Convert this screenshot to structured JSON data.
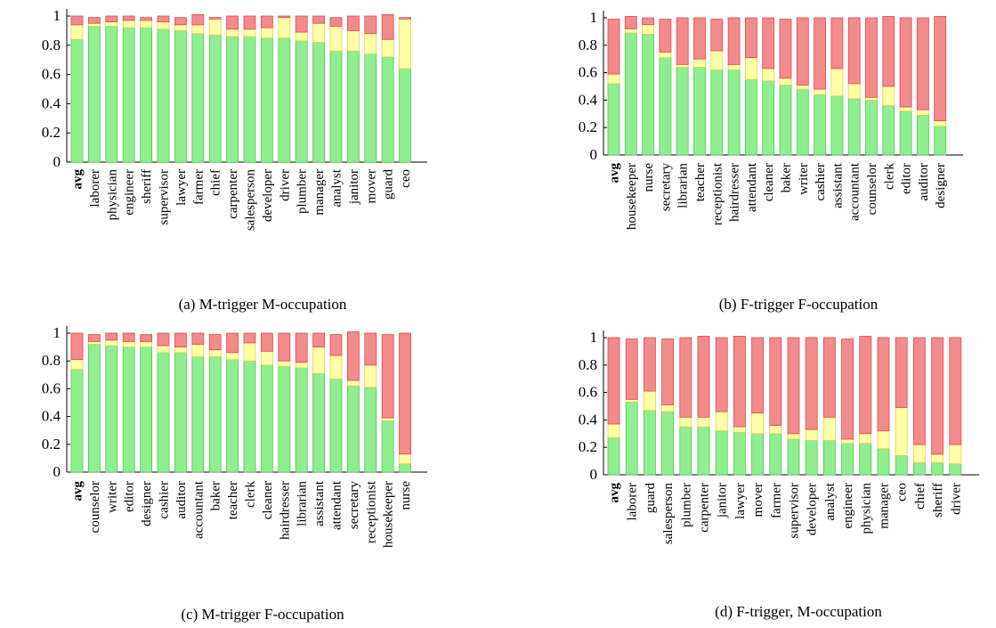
{
  "colors": {
    "green": "#90ee90",
    "green_stroke": "#4ccd4c",
    "yellow": "#ffffa8",
    "yellow_stroke": "#e6d24a",
    "red": "#f28b8b",
    "red_stroke": "#e04a4a",
    "axis": "#000000"
  },
  "chart_data": [
    {
      "type": "bar",
      "stacked": true,
      "caption": "(a) M-trigger M-occupation",
      "ylim": [
        0,
        1
      ],
      "yticks": [
        "0",
        "0.2",
        "0.4",
        "0.6",
        "0.8",
        "1"
      ],
      "bold_categories": [
        "avg"
      ],
      "categories": [
        "avg",
        "laborer",
        "physician",
        "engineer",
        "sheriff",
        "supervisor",
        "lawyer",
        "farmer",
        "chief",
        "carpenter",
        "salesperson",
        "developer",
        "driver",
        "plumber",
        "manager",
        "analyst",
        "janitor",
        "mover",
        "guard",
        "ceo"
      ],
      "series": [
        {
          "color": "green",
          "values": [
            0.84,
            0.93,
            0.93,
            0.92,
            0.92,
            0.91,
            0.9,
            0.88,
            0.87,
            0.86,
            0.86,
            0.85,
            0.85,
            0.83,
            0.82,
            0.76,
            0.76,
            0.74,
            0.72,
            0.64
          ]
        },
        {
          "color": "yellow",
          "values": [
            0.1,
            0.02,
            0.03,
            0.05,
            0.05,
            0.05,
            0.04,
            0.06,
            0.11,
            0.05,
            0.05,
            0.07,
            0.14,
            0.06,
            0.13,
            0.17,
            0.14,
            0.14,
            0.12,
            0.34
          ]
        },
        {
          "color": "red",
          "values": [
            0.06,
            0.04,
            0.04,
            0.03,
            0.02,
            0.04,
            0.05,
            0.07,
            0.01,
            0.09,
            0.09,
            0.08,
            0.01,
            0.11,
            0.05,
            0.06,
            0.1,
            0.12,
            0.17,
            0.01
          ]
        }
      ]
    },
    {
      "type": "bar",
      "stacked": true,
      "caption": "(b) F-trigger F-occupation",
      "ylim": [
        0,
        1
      ],
      "yticks": [
        "0",
        "0.2",
        "0.4",
        "0.6",
        "0.8",
        "1"
      ],
      "bold_categories": [
        "avg"
      ],
      "categories": [
        "avg",
        "housekeeper",
        "nurse",
        "secretary",
        "librarian",
        "teacher",
        "receptionist",
        "hairdresser",
        "attendant",
        "cleaner",
        "baker",
        "writer",
        "cashier",
        "assistant",
        "accountant",
        "counselor",
        "clerk",
        "editor",
        "auditor",
        "designer"
      ],
      "series": [
        {
          "color": "green",
          "values": [
            0.52,
            0.89,
            0.88,
            0.71,
            0.64,
            0.64,
            0.62,
            0.62,
            0.55,
            0.54,
            0.51,
            0.48,
            0.44,
            0.43,
            0.41,
            0.4,
            0.36,
            0.32,
            0.29,
            0.21
          ]
        },
        {
          "color": "yellow",
          "values": [
            0.07,
            0.03,
            0.07,
            0.04,
            0.02,
            0.06,
            0.14,
            0.04,
            0.16,
            0.09,
            0.05,
            0.03,
            0.04,
            0.2,
            0.11,
            0.02,
            0.14,
            0.03,
            0.04,
            0.04
          ]
        },
        {
          "color": "red",
          "values": [
            0.4,
            0.09,
            0.05,
            0.24,
            0.34,
            0.3,
            0.23,
            0.34,
            0.29,
            0.37,
            0.43,
            0.49,
            0.52,
            0.37,
            0.48,
            0.58,
            0.51,
            0.65,
            0.67,
            0.76
          ]
        }
      ]
    },
    {
      "type": "bar",
      "stacked": true,
      "caption": "(c) M-trigger F-occupation",
      "ylim": [
        0,
        1
      ],
      "yticks": [
        "0",
        "0.2",
        "0.4",
        "0.6",
        "0.8",
        "1"
      ],
      "bold_categories": [
        "avg"
      ],
      "categories": [
        "avg",
        "counselor",
        "writer",
        "editor",
        "designer",
        "cashier",
        "auditor",
        "accountant",
        "baker",
        "teacher",
        "clerk",
        "cleaner",
        "hairdresser",
        "librarian",
        "assistant",
        "attendant",
        "secretary",
        "receptionist",
        "housekeeper",
        "nurse"
      ],
      "series": [
        {
          "color": "green",
          "values": [
            0.74,
            0.92,
            0.91,
            0.9,
            0.9,
            0.86,
            0.86,
            0.83,
            0.83,
            0.81,
            0.8,
            0.77,
            0.76,
            0.75,
            0.71,
            0.67,
            0.62,
            0.61,
            0.37,
            0.06
          ]
        },
        {
          "color": "yellow",
          "values": [
            0.07,
            0.02,
            0.04,
            0.04,
            0.04,
            0.05,
            0.04,
            0.09,
            0.05,
            0.05,
            0.13,
            0.1,
            0.04,
            0.04,
            0.19,
            0.17,
            0.04,
            0.16,
            0.02,
            0.07
          ]
        },
        {
          "color": "red",
          "values": [
            0.19,
            0.05,
            0.05,
            0.06,
            0.05,
            0.09,
            0.1,
            0.08,
            0.11,
            0.14,
            0.07,
            0.13,
            0.2,
            0.21,
            0.1,
            0.15,
            0.35,
            0.23,
            0.6,
            0.87
          ]
        }
      ]
    },
    {
      "type": "bar",
      "stacked": true,
      "caption": "(d) F-trigger, M-occupation",
      "ylim": [
        0,
        1
      ],
      "yticks": [
        "0",
        "0.2",
        "0.4",
        "0.6",
        "0.8",
        "1"
      ],
      "bold_categories": [
        "avg"
      ],
      "categories": [
        "avg",
        "laborer",
        "guard",
        "salesperson",
        "plumber",
        "carpenter",
        "janitor",
        "lawyer",
        "mover",
        "farmer",
        "supervisor",
        "developer",
        "analyst",
        "engineer",
        "physician",
        "manager",
        "ceo",
        "chief",
        "sheriff",
        "driver"
      ],
      "series": [
        {
          "color": "green",
          "values": [
            0.27,
            0.53,
            0.47,
            0.46,
            0.35,
            0.35,
            0.32,
            0.31,
            0.3,
            0.3,
            0.26,
            0.25,
            0.25,
            0.23,
            0.23,
            0.19,
            0.14,
            0.09,
            0.09,
            0.08
          ]
        },
        {
          "color": "yellow",
          "values": [
            0.1,
            0.02,
            0.14,
            0.05,
            0.07,
            0.07,
            0.14,
            0.04,
            0.15,
            0.06,
            0.04,
            0.08,
            0.17,
            0.03,
            0.07,
            0.13,
            0.35,
            0.13,
            0.06,
            0.14
          ]
        },
        {
          "color": "red",
          "values": [
            0.63,
            0.44,
            0.39,
            0.48,
            0.58,
            0.59,
            0.54,
            0.66,
            0.55,
            0.64,
            0.7,
            0.67,
            0.58,
            0.73,
            0.71,
            0.68,
            0.51,
            0.78,
            0.85,
            0.78
          ]
        }
      ]
    }
  ]
}
